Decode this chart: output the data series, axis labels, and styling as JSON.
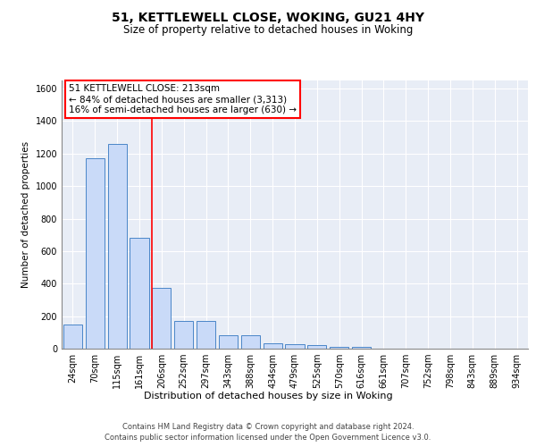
{
  "title1": "51, KETTLEWELL CLOSE, WOKING, GU21 4HY",
  "title2": "Size of property relative to detached houses in Woking",
  "xlabel": "Distribution of detached houses by size in Woking",
  "ylabel": "Number of detached properties",
  "categories": [
    "24sqm",
    "70sqm",
    "115sqm",
    "161sqm",
    "206sqm",
    "252sqm",
    "297sqm",
    "343sqm",
    "388sqm",
    "434sqm",
    "479sqm",
    "525sqm",
    "570sqm",
    "616sqm",
    "661sqm",
    "707sqm",
    "752sqm",
    "798sqm",
    "843sqm",
    "889sqm",
    "934sqm"
  ],
  "values": [
    150,
    1170,
    1260,
    680,
    375,
    170,
    170,
    85,
    85,
    35,
    25,
    20,
    10,
    10,
    0,
    0,
    0,
    0,
    0,
    0,
    0
  ],
  "bar_color": "#c9daf8",
  "bar_edge_color": "#4a86c8",
  "background_color": "#e8edf6",
  "red_line_index": 4,
  "property_label": "51 KETTLEWELL CLOSE: 213sqm",
  "annotation_line1": "← 84% of detached houses are smaller (3,313)",
  "annotation_line2": "16% of semi-detached houses are larger (630) →",
  "footer1": "Contains HM Land Registry data © Crown copyright and database right 2024.",
  "footer2": "Contains public sector information licensed under the Open Government Licence v3.0.",
  "ylim": [
    0,
    1650
  ],
  "yticks": [
    0,
    200,
    400,
    600,
    800,
    1000,
    1200,
    1400,
    1600
  ],
  "title1_fontsize": 10,
  "title2_fontsize": 8.5,
  "xlabel_fontsize": 8,
  "ylabel_fontsize": 7.5,
  "tick_fontsize": 7,
  "annotation_fontsize": 7.5,
  "footer_fontsize": 6
}
